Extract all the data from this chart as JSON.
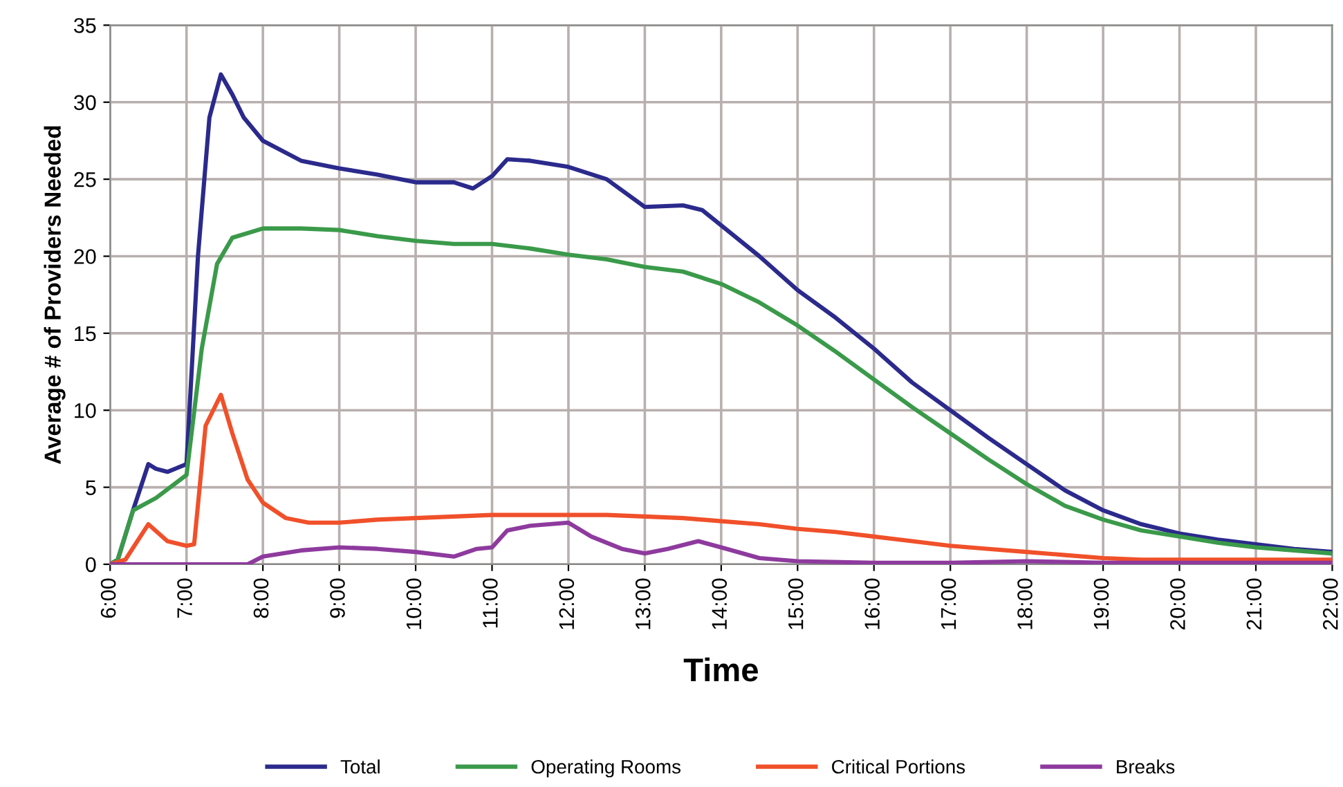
{
  "chart_data": {
    "type": "line",
    "xlabel": "Time",
    "ylabel": "Average # of Providers Needed",
    "xlim": [
      6,
      22
    ],
    "ylim": [
      0,
      35
    ],
    "xticks": [
      {
        "value": 6,
        "label": "6:00"
      },
      {
        "value": 7,
        "label": "7:00"
      },
      {
        "value": 8,
        "label": "8:00"
      },
      {
        "value": 9,
        "label": "9:00"
      },
      {
        "value": 10,
        "label": "10:00"
      },
      {
        "value": 11,
        "label": "11:00"
      },
      {
        "value": 12,
        "label": "12:00"
      },
      {
        "value": 13,
        "label": "13:00"
      },
      {
        "value": 14,
        "label": "14:00"
      },
      {
        "value": 15,
        "label": "15:00"
      },
      {
        "value": 16,
        "label": "16:00"
      },
      {
        "value": 17,
        "label": "17:00"
      },
      {
        "value": 18,
        "label": "18:00"
      },
      {
        "value": 19,
        "label": "19:00"
      },
      {
        "value": 20,
        "label": "20:00"
      },
      {
        "value": 21,
        "label": "21:00"
      },
      {
        "value": 22,
        "label": "22:00"
      }
    ],
    "yticks": [
      0,
      5,
      10,
      15,
      20,
      25,
      30,
      35
    ],
    "grid": true,
    "legend": "bottom",
    "marker": "none",
    "line_style": "solid",
    "series": [
      {
        "name": "Total",
        "color": "#2b2a8c",
        "x": [
          6.0,
          6.1,
          6.3,
          6.5,
          6.6,
          6.75,
          7.0,
          7.15,
          7.3,
          7.45,
          7.6,
          7.75,
          8.0,
          8.5,
          9.0,
          9.5,
          10.0,
          10.5,
          10.75,
          11.0,
          11.2,
          11.5,
          12.0,
          12.5,
          13.0,
          13.5,
          13.75,
          14.0,
          14.5,
          15.0,
          15.5,
          16.0,
          16.5,
          17.0,
          17.5,
          18.0,
          18.5,
          19.0,
          19.5,
          20.0,
          20.5,
          21.0,
          21.5,
          22.0
        ],
        "values": [
          0,
          0.3,
          3.5,
          6.5,
          6.2,
          6.0,
          6.5,
          20,
          29,
          31.8,
          30.5,
          29,
          27.5,
          26.2,
          25.7,
          25.3,
          24.8,
          24.8,
          24.4,
          25.2,
          26.3,
          26.2,
          25.8,
          25.0,
          23.2,
          23.3,
          23.0,
          22.0,
          20.0,
          17.8,
          16.0,
          14.0,
          11.8,
          10.0,
          8.2,
          6.5,
          4.8,
          3.5,
          2.6,
          2.0,
          1.6,
          1.3,
          1.0,
          0.8
        ]
      },
      {
        "name": "Operating Rooms",
        "color": "#3a9a4a",
        "x": [
          6.0,
          6.1,
          6.3,
          6.6,
          7.0,
          7.2,
          7.4,
          7.6,
          8.0,
          8.5,
          9.0,
          9.5,
          10.0,
          10.5,
          11.0,
          11.5,
          12.0,
          12.5,
          13.0,
          13.5,
          14.0,
          14.5,
          15.0,
          15.5,
          16.0,
          16.5,
          17.0,
          17.5,
          18.0,
          18.5,
          19.0,
          19.5,
          20.0,
          20.5,
          21.0,
          21.5,
          22.0
        ],
        "values": [
          0,
          0.3,
          3.5,
          4.3,
          5.8,
          14,
          19.5,
          21.2,
          21.8,
          21.8,
          21.7,
          21.3,
          21.0,
          20.8,
          20.8,
          20.5,
          20.1,
          19.8,
          19.3,
          19.0,
          18.2,
          17.0,
          15.5,
          13.8,
          12.0,
          10.2,
          8.5,
          6.8,
          5.2,
          3.8,
          2.9,
          2.2,
          1.8,
          1.4,
          1.1,
          0.9,
          0.7
        ]
      },
      {
        "name": "Critical Portions",
        "color": "#f0502a",
        "x": [
          6.0,
          6.2,
          6.5,
          6.75,
          7.0,
          7.1,
          7.25,
          7.45,
          7.6,
          7.8,
          8.0,
          8.3,
          8.6,
          9.0,
          9.5,
          10.0,
          11.0,
          12.0,
          12.5,
          13.0,
          13.5,
          14.0,
          14.5,
          15.0,
          15.5,
          16.0,
          16.5,
          17.0,
          17.5,
          18.0,
          18.5,
          19.0,
          19.5,
          20.0,
          21.0,
          22.0
        ],
        "values": [
          0,
          0.3,
          2.6,
          1.5,
          1.2,
          1.3,
          9,
          11.0,
          8.5,
          5.5,
          4.0,
          3.0,
          2.7,
          2.7,
          2.9,
          3.0,
          3.2,
          3.2,
          3.2,
          3.1,
          3.0,
          2.8,
          2.6,
          2.3,
          2.1,
          1.8,
          1.5,
          1.2,
          1.0,
          0.8,
          0.6,
          0.4,
          0.3,
          0.3,
          0.3,
          0.3
        ]
      },
      {
        "name": "Breaks",
        "color": "#8e3a9e",
        "x": [
          6.0,
          7.8,
          8.0,
          8.5,
          9.0,
          9.5,
          10.0,
          10.5,
          10.8,
          11.0,
          11.2,
          11.5,
          12.0,
          12.3,
          12.7,
          13.0,
          13.3,
          13.7,
          14.0,
          14.5,
          15.0,
          16.0,
          17.0,
          18.0,
          19.0,
          20.0,
          22.0
        ],
        "values": [
          0,
          0,
          0.5,
          0.9,
          1.1,
          1.0,
          0.8,
          0.5,
          1.0,
          1.1,
          2.2,
          2.5,
          2.7,
          1.8,
          1.0,
          0.7,
          1.0,
          1.5,
          1.1,
          0.4,
          0.2,
          0.1,
          0.1,
          0.2,
          0.1,
          0.1,
          0.1
        ]
      }
    ]
  }
}
